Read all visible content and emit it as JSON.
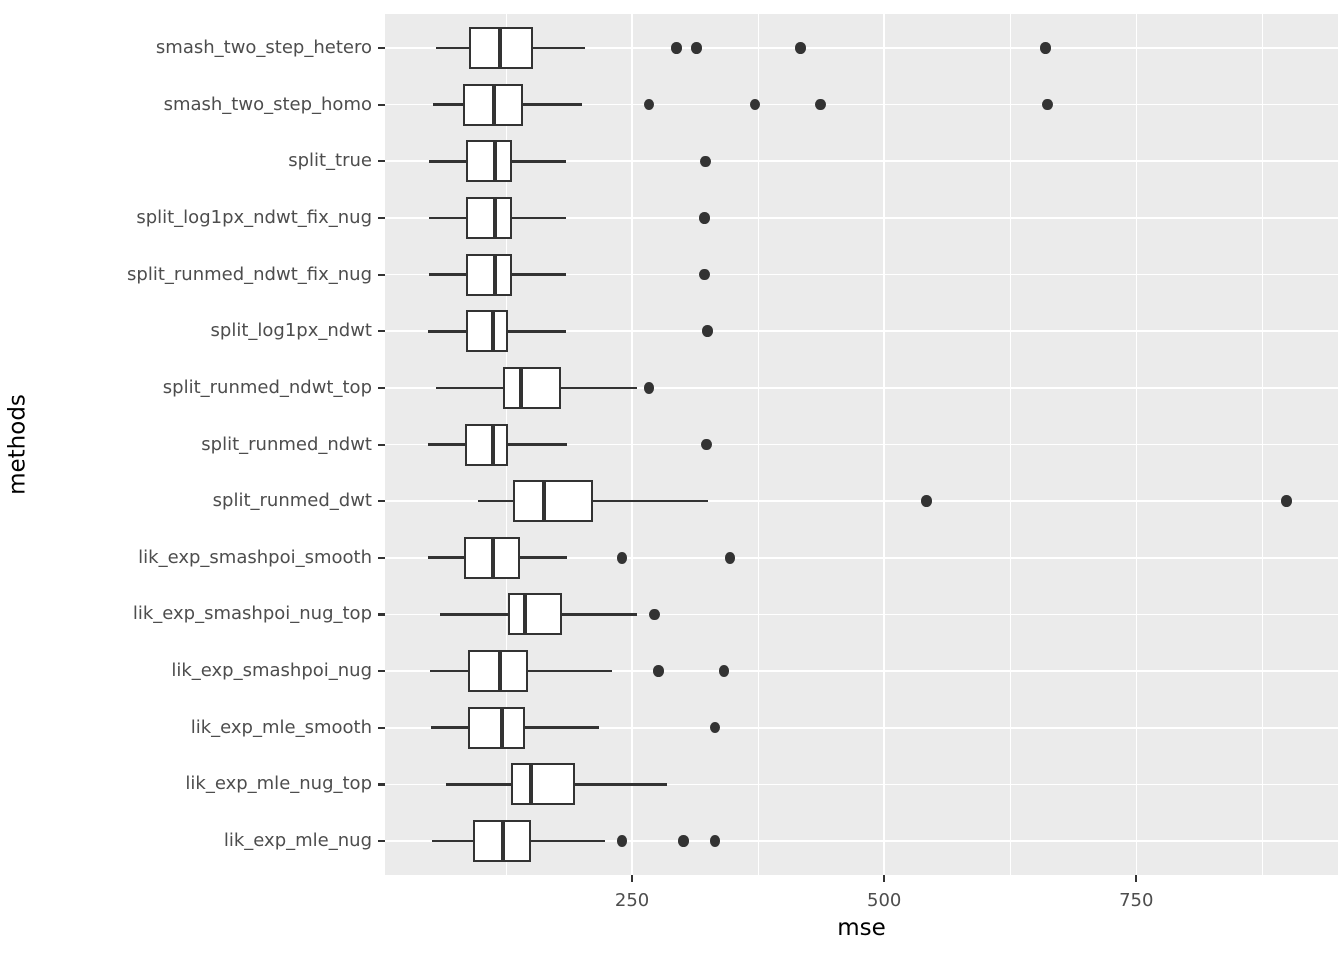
{
  "chart_data": {
    "type": "boxplot",
    "orientation": "horizontal",
    "title": "",
    "xlabel": "mse",
    "ylabel": "methods",
    "xlim": [
      5,
      950
    ],
    "x_major_ticks": [
      250,
      500,
      750
    ],
    "x_minor_gridlines": [
      125,
      375,
      625,
      875
    ],
    "grid": "major-and-minor-white-on-grey",
    "legend": "none",
    "categories_top_to_bottom": [
      "smash_two_step_hetero",
      "smash_two_step_homo",
      "split_true",
      "split_log1px_ndwt_fix_nug",
      "split_runmed_ndwt_fix_nug",
      "split_log1px_ndwt",
      "split_runmed_ndwt_top",
      "split_runmed_ndwt",
      "split_runmed_dwt",
      "lik_exp_smashpoi_smooth",
      "lik_exp_smashpoi_nug_top",
      "lik_exp_smashpoi_nug",
      "lik_exp_mle_smooth",
      "lik_exp_mle_nug_top",
      "lik_exp_mle_nug"
    ],
    "series": [
      {
        "name": "smash_two_step_hetero",
        "whisker_low": 56,
        "q1": 88,
        "median": 119,
        "q3": 152,
        "whisker_high": 203,
        "outliers": [
          294,
          314,
          417,
          660
        ]
      },
      {
        "name": "smash_two_step_homo",
        "whisker_low": 53,
        "q1": 82,
        "median": 113,
        "q3": 142,
        "whisker_high": 200,
        "outliers": [
          267,
          372,
          437,
          662
        ]
      },
      {
        "name": "split_true",
        "whisker_low": 49,
        "q1": 85,
        "median": 114,
        "q3": 131,
        "whisker_high": 184,
        "outliers": [
          323
        ]
      },
      {
        "name": "split_log1px_ndwt_fix_nug",
        "whisker_low": 49,
        "q1": 85,
        "median": 114,
        "q3": 131,
        "whisker_high": 184,
        "outliers": [
          322
        ]
      },
      {
        "name": "split_runmed_ndwt_fix_nug",
        "whisker_low": 49,
        "q1": 85,
        "median": 114,
        "q3": 131,
        "whisker_high": 184,
        "outliers": [
          322
        ]
      },
      {
        "name": "split_log1px_ndwt",
        "whisker_low": 48,
        "q1": 85,
        "median": 112,
        "q3": 127,
        "whisker_high": 184,
        "outliers": [
          325
        ]
      },
      {
        "name": "split_runmed_ndwt_top",
        "whisker_low": 56,
        "q1": 122,
        "median": 140,
        "q3": 180,
        "whisker_high": 255,
        "outliers": [
          267
        ]
      },
      {
        "name": "split_runmed_ndwt",
        "whisker_low": 48,
        "q1": 84,
        "median": 112,
        "q3": 127,
        "whisker_high": 185,
        "outliers": [
          324
        ]
      },
      {
        "name": "split_runmed_dwt",
        "whisker_low": 97,
        "q1": 132,
        "median": 163,
        "q3": 211,
        "whisker_high": 325,
        "outliers": [
          542,
          899
        ]
      },
      {
        "name": "lik_exp_smashpoi_smooth",
        "whisker_low": 48,
        "q1": 83,
        "median": 112,
        "q3": 139,
        "whisker_high": 185,
        "outliers": [
          240,
          347
        ]
      },
      {
        "name": "lik_exp_smashpoi_nug_top",
        "whisker_low": 60,
        "q1": 127,
        "median": 144,
        "q3": 181,
        "whisker_high": 255,
        "outliers": [
          272
        ]
      },
      {
        "name": "lik_exp_smashpoi_nug",
        "whisker_low": 50,
        "q1": 87,
        "median": 119,
        "q3": 147,
        "whisker_high": 230,
        "outliers": [
          276,
          341
        ]
      },
      {
        "name": "lik_exp_mle_smooth",
        "whisker_low": 51,
        "q1": 87,
        "median": 121,
        "q3": 144,
        "whisker_high": 217,
        "outliers": [
          332
        ]
      },
      {
        "name": "lik_exp_mle_nug_top",
        "whisker_low": 65,
        "q1": 130,
        "median": 150,
        "q3": 193,
        "whisker_high": 285,
        "outliers": []
      },
      {
        "name": "lik_exp_mle_nug",
        "whisker_low": 52,
        "q1": 92,
        "median": 122,
        "q3": 150,
        "whisker_high": 223,
        "outliers": [
          240,
          301,
          332
        ]
      }
    ]
  },
  "colors": {
    "panel_background": "#EBEBEB",
    "gridline": "#FFFFFF",
    "box_stroke": "#333333",
    "box_fill": "#FFFFFF",
    "outlier": "#333333",
    "axis_text": "#4D4D4D",
    "axis_title": "#000000",
    "tick_mark": "#333333"
  }
}
